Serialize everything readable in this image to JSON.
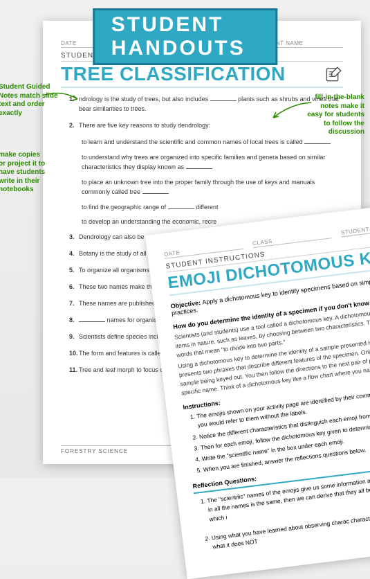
{
  "banner": {
    "text": "STUDENT HANDOUTS",
    "bg": "#2fa8c4",
    "border": "#1a7a92"
  },
  "annotations": {
    "left1": "Student Guided Notes match slide text and order exactly",
    "left2": "make copies or project it to have students write in their notebooks",
    "right": "fill-in-the-blank notes make it easy for students to follow the discussion"
  },
  "sheet1": {
    "header_fields": [
      "DATE",
      "CLASS",
      "STUDENT NAME"
    ],
    "section_label": "STUDENT GUIDED NOTES",
    "title": "TREE CLASSIFICATION",
    "items": [
      "ndrology is the study of trees, but also includes ____ plants such as shrubs and vines that bear similarities to trees.",
      "There are five key reasons to study dendrology:",
      "Dendrology can also be referred to as ____ identification, classification, des",
      "Botany is the study of all ____",
      "To organize all organisms, scie ____ and the specific ____",
      "These two names make the ____ nomenclature.",
      "These names are published organisms around the wor",
      "____ names for organisms identification confusing.",
      "Scientists define species including any sort of distinguishes this spe",
      "The form and features is called the ____ of t",
      "Tree and leaf morph to focus on the inter features on the outs"
    ],
    "subpoints": [
      "to learn and understand the scientific and common names of local trees is called ____",
      "to understand why trees are organized into specific families and genera based on similar characteristics they display known as ____",
      "to place an unknown tree into the proper family through the use of keys and manuals commonly called tree ____",
      "to find the geographic range of ____ different",
      "to develop an understanding the economic, recre"
    ],
    "footer": "FORESTRY SCIENCE"
  },
  "sheet2": {
    "header_fields": [
      "DATE",
      "CLASS",
      "STUDENT NAME"
    ],
    "section_label": "STUDENT INSTRUCTIONS",
    "title": "EMOJI DICHOTOMOUS KEY",
    "objective_label": "Objective:",
    "objective": "Apply a dichotomous key to identify specimens based on simple characte naming practices.",
    "q_head": "How do you determine the identity of a specimen if you don't know what it is?",
    "para1": "Scientists (and students) use a tool called a dichotomous key. A dichotomous key is a simp identify items in nature, such as leaves, by choosing between two characteristics. The word from Greek words that mean \"to divide into two parts.\"",
    "para2": "Using a dichotomous key to determine the identity of a sample presented is called \"keying\" presents two phrases that describe different features of the specimen. Only one of the phra the sample being keyed out. You then follow the directions to the next pair of phrases until y down to a specific name. Think of a dichotomous key like a flow chart where you narrow dow each choice.",
    "instr_label": "Instructions:",
    "instructions": [
      "The emojis shown on your activity page are identified by their common names. Take a m how you would refer to them without the labels.",
      "Notice the different characteristics that distinguish each emoji from the other and what t",
      "Then for each emoji, follow the dichotomous key given to determine its \"scientific name\"",
      "Write the \"scientific name\" in the box under each emoji.",
      "When you are finished, answer the reflections questions below."
    ],
    "reflect_label": "Reflection Questions:",
    "reflections": [
      "The \"scientific\" names of the emojis give us some information about their classification. Since in all the names is the same, then we can derive that they all belong to the same ____ which i",
      "Using what you have learned about observing charac characteristics of this emoji.  (Reme what it does NOT"
    ]
  }
}
